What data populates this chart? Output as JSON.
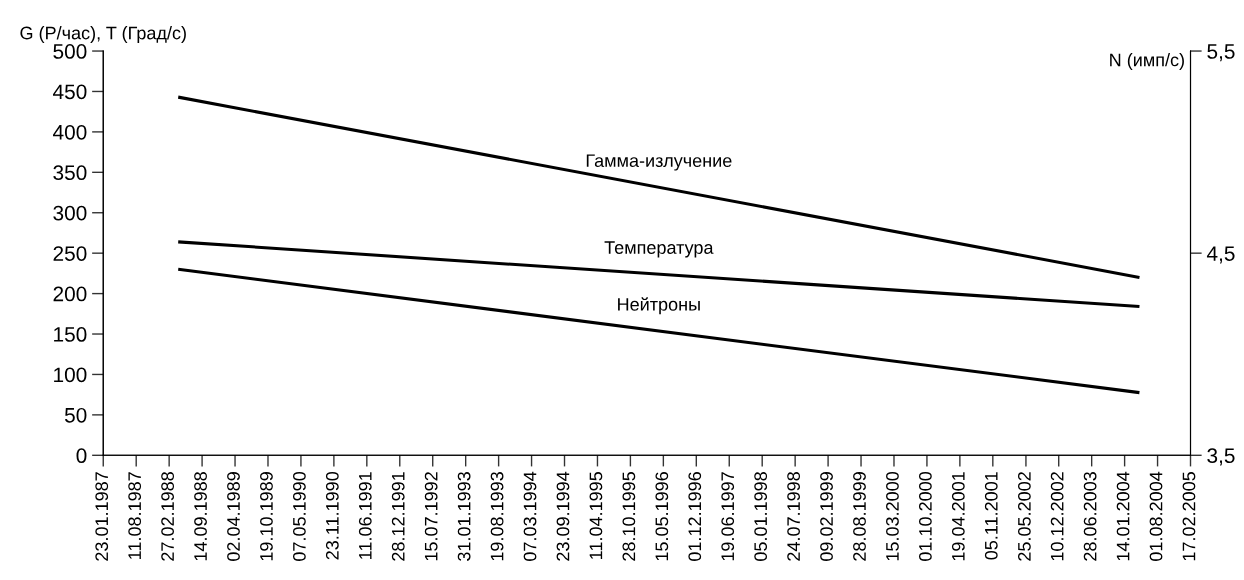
{
  "chart_data": {
    "type": "line",
    "ylabel": "G (Р/час), T (Град/с)",
    "y2label": "N (имп/с)",
    "xlim": [
      "1987-01-23",
      "2005-02-17"
    ],
    "xticks": [
      {
        "value": "1987-01-23",
        "label": "23.01.1987"
      },
      {
        "value": "1987-08-11",
        "label": "11.08.1987"
      },
      {
        "value": "1988-02-27",
        "label": "27.02.1988"
      },
      {
        "value": "1988-09-14",
        "label": "14.09.1988"
      },
      {
        "value": "1989-04-02",
        "label": "02.04.1989"
      },
      {
        "value": "1989-10-19",
        "label": "19.10.1989"
      },
      {
        "value": "1990-05-07",
        "label": "07.05.1990"
      },
      {
        "value": "1990-11-23",
        "label": "23.11.1990"
      },
      {
        "value": "1991-06-11",
        "label": "11.06.1991"
      },
      {
        "value": "1991-12-28",
        "label": "28.12.1991"
      },
      {
        "value": "1992-07-15",
        "label": "15.07.1992"
      },
      {
        "value": "1993-01-31",
        "label": "31.01.1993"
      },
      {
        "value": "1993-08-19",
        "label": "19.08.1993"
      },
      {
        "value": "1994-03-07",
        "label": "07.03.1994"
      },
      {
        "value": "1994-09-23",
        "label": "23.09.1994"
      },
      {
        "value": "1995-04-11",
        "label": "11.04.1995"
      },
      {
        "value": "1995-10-28",
        "label": "28.10.1995"
      },
      {
        "value": "1996-05-15",
        "label": "15.05.1996"
      },
      {
        "value": "1996-12-01",
        "label": "01.12.1996"
      },
      {
        "value": "1997-06-19",
        "label": "19.06.1997"
      },
      {
        "value": "1998-01-05",
        "label": "05.01.1998"
      },
      {
        "value": "1998-07-24",
        "label": "24.07.1998"
      },
      {
        "value": "1999-02-09",
        "label": "09.02.1999"
      },
      {
        "value": "1999-08-28",
        "label": "28.08.1999"
      },
      {
        "value": "2000-03-15",
        "label": "15.03.2000"
      },
      {
        "value": "2000-10-01",
        "label": "01.10.2000"
      },
      {
        "value": "2001-04-19",
        "label": "19.04.2001"
      },
      {
        "value": "2001-11-05",
        "label": "05.11.2001"
      },
      {
        "value": "2002-05-25",
        "label": "25.05.2002"
      },
      {
        "value": "2002-12-10",
        "label": "10.12.2002"
      },
      {
        "value": "2003-06-28",
        "label": "28.06.2003"
      },
      {
        "value": "2004-01-14",
        "label": "14.01.2004"
      },
      {
        "value": "2004-08-01",
        "label": "01.08.2004"
      },
      {
        "value": "2005-02-17",
        "label": "17.02.2005"
      }
    ],
    "ylim": [
      0,
      500
    ],
    "yticks": [
      0,
      50,
      100,
      150,
      200,
      250,
      300,
      350,
      400,
      450,
      500
    ],
    "y2lim": [
      3.5,
      5.5
    ],
    "y2ticks": [
      {
        "value": 3.5,
        "label": "3,5"
      },
      {
        "value": 4.5,
        "label": "4,5"
      },
      {
        "value": 5.5,
        "label": "5,5"
      }
    ],
    "grid": false,
    "legend": false,
    "series": [
      {
        "name": "Гамма-излучение",
        "color": "#000000",
        "x": [
          "1988-04-22",
          "2004-04-13"
        ],
        "values": [
          443,
          220
        ]
      },
      {
        "name": "Температура",
        "color": "#000000",
        "x": [
          "1988-04-22",
          "2004-04-13"
        ],
        "values": [
          264,
          184
        ]
      },
      {
        "name": "Нейтроны",
        "color": "#000000",
        "axis": "y2",
        "x": [
          "1988-04-22",
          "2004-04-13"
        ],
        "values": [
          4.42,
          3.81
        ]
      }
    ]
  }
}
